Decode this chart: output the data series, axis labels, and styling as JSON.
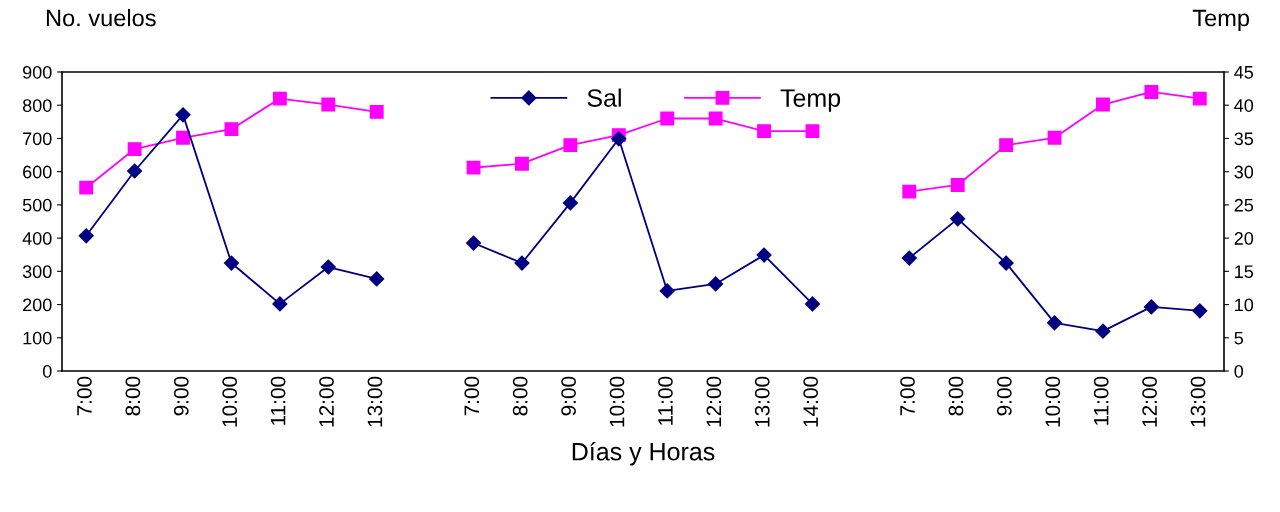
{
  "chart_data": {
    "type": "line",
    "xlabel": "Días y Horas",
    "ylabel": "No. vuelos",
    "y2label": "Temp",
    "categories": [
      "7:00",
      "8:00",
      "9:00",
      "10:00",
      "11:00",
      "12:00",
      "13:00",
      null,
      "7:00",
      "8:00",
      "9:00",
      "10:00",
      "11:00",
      "12:00",
      "13:00",
      "14:00",
      null,
      "7:00",
      "8:00",
      "9:00",
      "10:00",
      "11:00",
      "12:00",
      "13:00"
    ],
    "series": [
      {
        "name": "Sal",
        "color": "#000080",
        "marker": "diamond",
        "values": [
          407,
          602,
          771,
          325,
          202,
          313,
          277,
          null,
          385,
          325,
          506,
          699,
          241,
          262,
          349,
          202,
          null,
          340,
          458,
          325,
          145,
          120,
          193,
          181
        ]
      },
      {
        "name": "Temp",
        "color": "#ff00ff",
        "marker": "square",
        "axis": "y2",
        "values": [
          27.6,
          33.4,
          35.1,
          36.4,
          41,
          40.1,
          39,
          null,
          30.6,
          31.2,
          34,
          35.5,
          38,
          38,
          36.1,
          36.1,
          null,
          27,
          28,
          34,
          35.1,
          40.1,
          42,
          41
        ]
      }
    ],
    "ylim": [
      0,
      900
    ],
    "yticks": [
      0,
      100,
      200,
      300,
      400,
      500,
      600,
      700,
      800,
      900
    ],
    "y2lim": [
      0,
      45
    ],
    "y2ticks": [
      0,
      5,
      10,
      15,
      20,
      25,
      30,
      35,
      40,
      45
    ],
    "legend": "top",
    "grid": false,
    "line_style": "solid"
  }
}
